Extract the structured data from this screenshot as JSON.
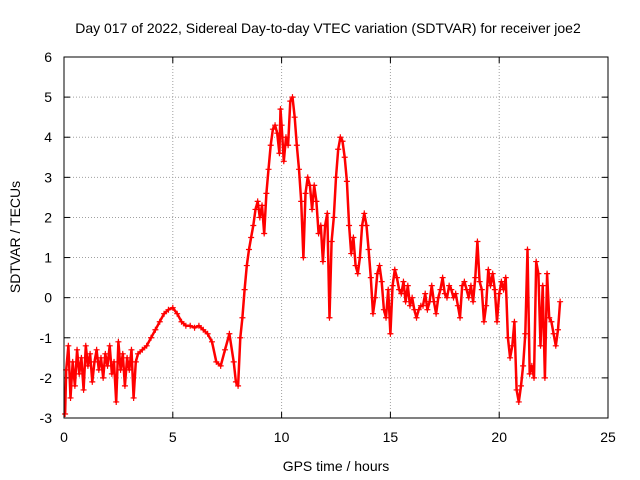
{
  "chart_data": {
    "type": "scatter",
    "title": "Day 017 of 2022, Sidereal Day-to-day VTEC variation (SDTVAR) for receiver joe2",
    "xlabel": "GPS time / hours",
    "ylabel": "SDTVAR / TECUs",
    "xlim": [
      0,
      25
    ],
    "ylim": [
      -3,
      6
    ],
    "xticks": [
      0,
      5,
      10,
      15,
      20,
      25
    ],
    "yticks": [
      -3,
      -2,
      -1,
      0,
      1,
      2,
      3,
      4,
      5,
      6
    ],
    "grid": true,
    "marker": "+",
    "series": [
      {
        "name": "SDTVAR",
        "color": "#ff0000",
        "points": [
          [
            0.05,
            -2.9
          ],
          [
            0.1,
            -1.8
          ],
          [
            0.2,
            -1.2
          ],
          [
            0.3,
            -2.5
          ],
          [
            0.4,
            -1.6
          ],
          [
            0.5,
            -2.2
          ],
          [
            0.6,
            -1.3
          ],
          [
            0.7,
            -1.9
          ],
          [
            0.8,
            -1.5
          ],
          [
            0.9,
            -2.3
          ],
          [
            1.0,
            -1.2
          ],
          [
            1.1,
            -1.7
          ],
          [
            1.2,
            -1.4
          ],
          [
            1.3,
            -2.1
          ],
          [
            1.4,
            -1.6
          ],
          [
            1.5,
            -1.3
          ],
          [
            1.6,
            -1.8
          ],
          [
            1.7,
            -1.5
          ],
          [
            1.8,
            -2.0
          ],
          [
            1.9,
            -1.4
          ],
          [
            2.0,
            -1.7
          ],
          [
            2.1,
            -1.2
          ],
          [
            2.2,
            -1.9
          ],
          [
            2.3,
            -1.6
          ],
          [
            2.4,
            -2.6
          ],
          [
            2.5,
            -1.1
          ],
          [
            2.6,
            -1.8
          ],
          [
            2.7,
            -1.4
          ],
          [
            2.8,
            -2.2
          ],
          [
            2.9,
            -1.5
          ],
          [
            3.0,
            -1.8
          ],
          [
            3.1,
            -1.3
          ],
          [
            3.2,
            -2.5
          ],
          [
            3.3,
            -1.6
          ],
          [
            3.4,
            -1.4
          ],
          [
            3.6,
            -1.3
          ],
          [
            3.8,
            -1.2
          ],
          [
            4.0,
            -1.0
          ],
          [
            4.2,
            -0.8
          ],
          [
            4.4,
            -0.6
          ],
          [
            4.6,
            -0.4
          ],
          [
            4.8,
            -0.3
          ],
          [
            5.0,
            -0.25
          ],
          [
            5.2,
            -0.4
          ],
          [
            5.4,
            -0.6
          ],
          [
            5.6,
            -0.7
          ],
          [
            5.8,
            -0.7
          ],
          [
            6.0,
            -0.75
          ],
          [
            6.2,
            -0.7
          ],
          [
            6.4,
            -0.8
          ],
          [
            6.6,
            -0.9
          ],
          [
            6.8,
            -1.1
          ],
          [
            7.0,
            -1.6
          ],
          [
            7.2,
            -1.7
          ],
          [
            7.4,
            -1.3
          ],
          [
            7.6,
            -0.9
          ],
          [
            7.8,
            -1.6
          ],
          [
            7.9,
            -2.1
          ],
          [
            8.0,
            -2.2
          ],
          [
            8.1,
            -1.0
          ],
          [
            8.2,
            -0.5
          ],
          [
            8.3,
            0.2
          ],
          [
            8.4,
            0.8
          ],
          [
            8.5,
            1.2
          ],
          [
            8.6,
            1.5
          ],
          [
            8.7,
            1.8
          ],
          [
            8.8,
            2.2
          ],
          [
            8.9,
            2.4
          ],
          [
            9.0,
            2.0
          ],
          [
            9.1,
            2.3
          ],
          [
            9.2,
            1.6
          ],
          [
            9.3,
            2.6
          ],
          [
            9.4,
            3.2
          ],
          [
            9.5,
            3.8
          ],
          [
            9.6,
            4.2
          ],
          [
            9.7,
            4.3
          ],
          [
            9.8,
            4.1
          ],
          [
            9.9,
            3.6
          ],
          [
            9.95,
            4.7
          ],
          [
            10.0,
            4.3
          ],
          [
            10.1,
            3.4
          ],
          [
            10.2,
            4.0
          ],
          [
            10.3,
            3.8
          ],
          [
            10.4,
            4.9
          ],
          [
            10.5,
            5.0
          ],
          [
            10.6,
            4.5
          ],
          [
            10.7,
            3.8
          ],
          [
            10.8,
            3.2
          ],
          [
            10.9,
            2.4
          ],
          [
            11.0,
            1.0
          ],
          [
            11.1,
            2.6
          ],
          [
            11.2,
            3.0
          ],
          [
            11.3,
            2.8
          ],
          [
            11.4,
            2.2
          ],
          [
            11.5,
            2.8
          ],
          [
            11.6,
            2.4
          ],
          [
            11.7,
            1.6
          ],
          [
            11.8,
            1.8
          ],
          [
            11.9,
            0.9
          ],
          [
            12.0,
            1.8
          ],
          [
            12.1,
            2.1
          ],
          [
            12.2,
            -0.5
          ],
          [
            12.3,
            1.4
          ],
          [
            12.4,
            2.0
          ],
          [
            12.5,
            3.0
          ],
          [
            12.6,
            3.7
          ],
          [
            12.7,
            4.0
          ],
          [
            12.8,
            3.9
          ],
          [
            12.9,
            3.5
          ],
          [
            13.0,
            2.9
          ],
          [
            13.1,
            1.8
          ],
          [
            13.2,
            1.1
          ],
          [
            13.3,
            1.5
          ],
          [
            13.4,
            0.8
          ],
          [
            13.5,
            0.6
          ],
          [
            13.6,
            1.0
          ],
          [
            13.7,
            1.8
          ],
          [
            13.8,
            2.1
          ],
          [
            13.9,
            1.8
          ],
          [
            14.0,
            1.2
          ],
          [
            14.1,
            0.5
          ],
          [
            14.2,
            -0.4
          ],
          [
            14.3,
            0.0
          ],
          [
            14.4,
            0.6
          ],
          [
            14.5,
            0.8
          ],
          [
            14.6,
            0.4
          ],
          [
            14.7,
            -0.3
          ],
          [
            14.8,
            -0.5
          ],
          [
            14.9,
            0.2
          ],
          [
            15.0,
            -0.9
          ],
          [
            15.1,
            0.3
          ],
          [
            15.2,
            0.7
          ],
          [
            15.3,
            0.5
          ],
          [
            15.4,
            0.2
          ],
          [
            15.5,
            0.1
          ],
          [
            15.6,
            0.4
          ],
          [
            15.7,
            -0.1
          ],
          [
            15.8,
            0.3
          ],
          [
            15.9,
            -0.2
          ],
          [
            16.0,
            0.0
          ],
          [
            16.1,
            -0.3
          ],
          [
            16.2,
            -0.5
          ],
          [
            16.3,
            -0.3
          ],
          [
            16.4,
            -0.2
          ],
          [
            16.5,
            -0.2
          ],
          [
            16.6,
            0.1
          ],
          [
            16.7,
            -0.3
          ],
          [
            16.8,
            -0.1
          ],
          [
            16.9,
            0.3
          ],
          [
            17.0,
            -0.1
          ],
          [
            17.1,
            -0.4
          ],
          [
            17.2,
            0.0
          ],
          [
            17.3,
            0.2
          ],
          [
            17.4,
            0.5
          ],
          [
            17.5,
            0.1
          ],
          [
            17.6,
            0.0
          ],
          [
            17.7,
            0.3
          ],
          [
            17.8,
            0.2
          ],
          [
            17.9,
            0.0
          ],
          [
            18.0,
            0.1
          ],
          [
            18.1,
            -0.2
          ],
          [
            18.2,
            -0.5
          ],
          [
            18.3,
            0.3
          ],
          [
            18.4,
            0.4
          ],
          [
            18.5,
            0.2
          ],
          [
            18.6,
            0.0
          ],
          [
            18.7,
            0.3
          ],
          [
            18.8,
            -0.1
          ],
          [
            18.9,
            0.5
          ],
          [
            19.0,
            1.4
          ],
          [
            19.1,
            0.4
          ],
          [
            19.2,
            0.2
          ],
          [
            19.3,
            -0.6
          ],
          [
            19.4,
            -0.2
          ],
          [
            19.5,
            0.7
          ],
          [
            19.6,
            0.3
          ],
          [
            19.7,
            0.6
          ],
          [
            19.8,
            0.2
          ],
          [
            19.9,
            -0.6
          ],
          [
            20.0,
            0.1
          ],
          [
            20.1,
            0.4
          ],
          [
            20.2,
            0.2
          ],
          [
            20.3,
            0.5
          ],
          [
            20.4,
            -1.0
          ],
          [
            20.5,
            -1.5
          ],
          [
            20.6,
            -1.2
          ],
          [
            20.7,
            -0.6
          ],
          [
            20.8,
            -2.3
          ],
          [
            20.9,
            -2.6
          ],
          [
            21.0,
            -2.2
          ],
          [
            21.1,
            -1.7
          ],
          [
            21.2,
            -0.9
          ],
          [
            21.3,
            1.2
          ],
          [
            21.4,
            -1.9
          ],
          [
            21.5,
            -1.7
          ],
          [
            21.6,
            -2.0
          ],
          [
            21.7,
            0.9
          ],
          [
            21.8,
            0.6
          ],
          [
            21.9,
            -1.2
          ],
          [
            22.0,
            0.3
          ],
          [
            22.1,
            -2.0
          ],
          [
            22.2,
            0.6
          ],
          [
            22.3,
            -0.5
          ],
          [
            22.4,
            -0.6
          ],
          [
            22.5,
            -0.9
          ],
          [
            22.6,
            -1.2
          ],
          [
            22.7,
            -0.8
          ],
          [
            22.8,
            -0.1
          ]
        ]
      }
    ]
  }
}
